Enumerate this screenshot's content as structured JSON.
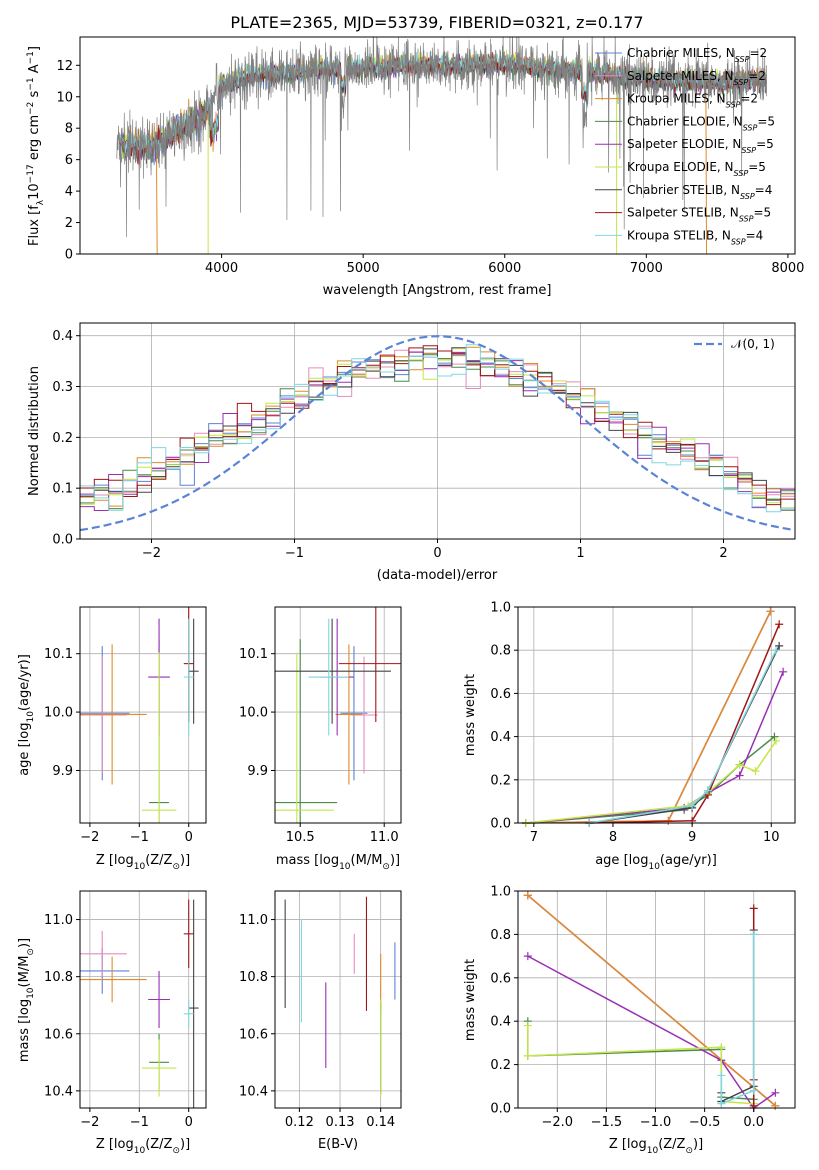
{
  "colors": {
    "chabrier_miles": "#5b84d6",
    "salpeter_miles": "#e58bbe",
    "kroupa_miles": "#e08a2a",
    "chabrier_elodie": "#4a8a4a",
    "salpeter_elodie": "#9a2fb4",
    "kroupa_elodie": "#c4e64a",
    "chabrier_stelib": "#444444",
    "salpeter_stelib": "#a01616",
    "kroupa_stelib": "#7fd6e0",
    "data_spectrum": "#808080",
    "normal_curve": "#5b84d6"
  },
  "chart_data": [
    {
      "id": "spectrum",
      "type": "line",
      "title": "PLATE=2365, MJD=53739, FIBERID=0321, z=0.177",
      "xlabel": "wavelength [Angstrom, rest frame]",
      "ylabel_parts": [
        "Flux [f",
        "λ",
        "10",
        "−17",
        " erg cm",
        "−2",
        " s",
        "−1",
        " A",
        "−1",
        "]"
      ],
      "xlim": [
        3000,
        8050
      ],
      "ylim": [
        0,
        13.8
      ],
      "xticks": [
        4000,
        5000,
        6000,
        7000,
        8000
      ],
      "yticks": [
        0,
        2,
        4,
        6,
        8,
        10,
        12
      ],
      "grid": false,
      "legend_position": "top-right",
      "continuum": {
        "x": [
          3250,
          3500,
          3750,
          3900,
          4000,
          4200,
          4500,
          5000,
          5500,
          6000,
          6500,
          7000,
          7500,
          7850
        ],
        "y": [
          7.0,
          6.8,
          8.3,
          9.0,
          10.8,
          11.3,
          11.6,
          11.9,
          12.0,
          12.1,
          11.7,
          11.1,
          10.9,
          11.1
        ]
      },
      "series": [
        {
          "name": "Chabrier MILES, N",
          "sub": "SSP",
          "suffix": "=2",
          "color_key": "chabrier_miles"
        },
        {
          "name": "Salpeter MILES, N",
          "sub": "SSP",
          "suffix": "=2",
          "color_key": "salpeter_miles"
        },
        {
          "name": "Kroupa MILES, N",
          "sub": "SSP",
          "suffix": "=2",
          "color_key": "kroupa_miles"
        },
        {
          "name": "Chabrier ELODIE, N",
          "sub": "SSP",
          "suffix": "=5",
          "color_key": "chabrier_elodie"
        },
        {
          "name": "Salpeter ELODIE, N",
          "sub": "SSP",
          "suffix": "=5",
          "color_key": "salpeter_elodie"
        },
        {
          "name": "Kroupa ELODIE, N",
          "sub": "SSP",
          "suffix": "=5",
          "color_key": "kroupa_elodie"
        },
        {
          "name": "Chabrier STELIB, N",
          "sub": "SSP",
          "suffix": "=4",
          "color_key": "chabrier_stelib"
        },
        {
          "name": "Salpeter STELIB, N",
          "sub": "SSP",
          "suffix": "=5",
          "color_key": "salpeter_stelib"
        },
        {
          "name": "Kroupa STELIB, N",
          "sub": "SSP",
          "suffix": "=4",
          "color_key": "kroupa_stelib"
        }
      ]
    },
    {
      "id": "residuals",
      "type": "step-histogram",
      "xlabel": "(data-model)/error",
      "ylabel": "Normed distribution",
      "xlim": [
        -2.5,
        2.5
      ],
      "ylim": [
        0,
        0.425
      ],
      "xticks": [
        -2,
        -1,
        0,
        1,
        2
      ],
      "yticks": [
        0.0,
        0.1,
        0.2,
        0.3,
        0.4
      ],
      "grid": true,
      "legend_position": "top-right",
      "legend_label": "𝒩(0, 1)",
      "bin_width": 0.1,
      "normal_curve": {
        "mean": 0,
        "sigma": 1
      }
    },
    {
      "id": "age_vs_Z",
      "type": "errorbar",
      "xlabel_parts": [
        "Z [log",
        "10",
        "(Z/Z",
        "⊙",
        ")]"
      ],
      "ylabel_parts": [
        "age  [log",
        "10",
        "(age/yr)]"
      ],
      "xlim": [
        -2.2,
        0.35
      ],
      "ylim": [
        9.81,
        10.18
      ],
      "xticks": [
        -2,
        -1,
        0
      ],
      "yticks": [
        9.9,
        10.0,
        10.1
      ],
      "grid": true,
      "points": [
        {
          "color_key": "chabrier_miles",
          "x": -1.75,
          "xerr": 0.55,
          "y": 9.998,
          "yerr": 0.115
        },
        {
          "color_key": "salpeter_miles",
          "x": -1.75,
          "xerr": 0.5,
          "y": 9.995,
          "yerr": 0.1
        },
        {
          "color_key": "kroupa_miles",
          "x": -1.55,
          "xerr": 0.7,
          "y": 9.996,
          "yerr": 0.12
        },
        {
          "color_key": "chabrier_elodie",
          "x": -0.6,
          "xerr": 0.2,
          "y": 9.845,
          "yerr": 0.28
        },
        {
          "color_key": "salpeter_elodie",
          "x": -0.6,
          "xerr": 0.22,
          "y": 10.06,
          "yerr": 0.1
        },
        {
          "color_key": "kroupa_elodie",
          "x": -0.6,
          "xerr": 0.35,
          "y": 9.832,
          "yerr": 0.27
        },
        {
          "color_key": "chabrier_stelib",
          "x": 0.1,
          "xerr": 0.1,
          "y": 10.07,
          "yerr": 0.09
        },
        {
          "color_key": "salpeter_stelib",
          "x": 0.0,
          "xerr": 0.1,
          "y": 10.083,
          "yerr": 0.1
        },
        {
          "color_key": "kroupa_stelib",
          "x": 0.0,
          "xerr": 0.1,
          "y": 10.06,
          "yerr": 0.1
        }
      ]
    },
    {
      "id": "age_vs_mass",
      "type": "errorbar",
      "xlabel_parts": [
        "mass [log",
        "10",
        "(M/M",
        "⊙",
        ")]"
      ],
      "ylabel_parts": [],
      "xlim": [
        10.35,
        11.1
      ],
      "ylim": [
        9.81,
        10.18
      ],
      "xticks": [
        10.5,
        11.0
      ],
      "yticks": [
        9.9,
        10.0,
        10.1
      ],
      "grid": true,
      "points": [
        {
          "color_key": "chabrier_miles",
          "x": 10.82,
          "xerr": 0.08,
          "y": 9.998,
          "yerr": 0.115
        },
        {
          "color_key": "salpeter_miles",
          "x": 10.88,
          "xerr": 0.08,
          "y": 9.995,
          "yerr": 0.1
        },
        {
          "color_key": "kroupa_miles",
          "x": 10.79,
          "xerr": 0.08,
          "y": 9.996,
          "yerr": 0.12
        },
        {
          "color_key": "chabrier_elodie",
          "x": 10.5,
          "xerr": 0.22,
          "y": 9.845,
          "yerr": 0.28
        },
        {
          "color_key": "salpeter_elodie",
          "x": 10.72,
          "xerr": 0.1,
          "y": 10.06,
          "yerr": 0.1
        },
        {
          "color_key": "kroupa_elodie",
          "x": 10.48,
          "xerr": 0.22,
          "y": 9.832,
          "yerr": 0.27
        },
        {
          "color_key": "chabrier_stelib",
          "x": 10.69,
          "xerr": 0.35,
          "y": 10.07,
          "yerr": 0.09
        },
        {
          "color_key": "salpeter_stelib",
          "x": 10.95,
          "xerr": 0.22,
          "y": 10.083,
          "yerr": 0.1
        },
        {
          "color_key": "kroupa_stelib",
          "x": 10.67,
          "xerr": 0.12,
          "y": 10.06,
          "yerr": 0.1
        }
      ]
    },
    {
      "id": "mass_weight_vs_age",
      "type": "line",
      "xlabel_parts": [
        "age  [log",
        "10",
        "(age/yr)]"
      ],
      "ylabel": "mass weight",
      "xlim": [
        6.8,
        10.3
      ],
      "ylim": [
        0,
        1.0
      ],
      "xticks": [
        7,
        8,
        9,
        10
      ],
      "yticks": [
        0.0,
        0.2,
        0.4,
        0.6,
        0.8,
        1.0
      ],
      "grid": true,
      "series": [
        {
          "color_key": "chabrier_miles",
          "x": [
            6.9,
            8.7,
            9.99
          ],
          "y": [
            0.0,
            0.01,
            0.98
          ]
        },
        {
          "color_key": "salpeter_miles",
          "x": [
            6.9,
            8.7,
            9.99
          ],
          "y": [
            0.0,
            0.01,
            0.98
          ]
        },
        {
          "color_key": "kroupa_miles",
          "x": [
            6.9,
            8.7,
            9.99
          ],
          "y": [
            0.0,
            0.01,
            0.98
          ]
        },
        {
          "color_key": "chabrier_elodie",
          "x": [
            6.9,
            8.9,
            9.2,
            9.6,
            10.04
          ],
          "y": [
            0.0,
            0.06,
            0.13,
            0.27,
            0.4
          ]
        },
        {
          "color_key": "salpeter_elodie",
          "x": [
            6.9,
            8.9,
            9.2,
            9.6,
            10.15
          ],
          "y": [
            0.0,
            0.07,
            0.14,
            0.22,
            0.7
          ]
        },
        {
          "color_key": "kroupa_elodie",
          "x": [
            6.9,
            8.95,
            9.2,
            9.6,
            9.8,
            10.06
          ],
          "y": [
            0.0,
            0.08,
            0.14,
            0.27,
            0.24,
            0.38
          ]
        },
        {
          "color_key": "chabrier_stelib",
          "x": [
            7.7,
            9.0,
            9.2,
            10.1
          ],
          "y": [
            0.0,
            0.07,
            0.15,
            0.82
          ]
        },
        {
          "color_key": "salpeter_stelib",
          "x": [
            7.7,
            9.0,
            9.2,
            10.1
          ],
          "y": [
            0.0,
            0.01,
            0.13,
            0.92
          ]
        },
        {
          "color_key": "kroupa_stelib",
          "x": [
            7.7,
            9.0,
            9.2,
            10.06
          ],
          "y": [
            0.0,
            0.08,
            0.15,
            0.8
          ]
        }
      ]
    },
    {
      "id": "mass_vs_Z",
      "type": "errorbar",
      "xlabel_parts": [
        "Z [log",
        "10",
        "(Z/Z",
        "⊙",
        ")]"
      ],
      "ylabel_parts": [
        "mass [log",
        "10",
        "(M/M",
        "⊙",
        ")]"
      ],
      "xlim": [
        -2.2,
        0.35
      ],
      "ylim": [
        10.34,
        11.1
      ],
      "xticks": [
        -2,
        -1,
        0
      ],
      "yticks": [
        10.4,
        10.6,
        10.8,
        11.0
      ],
      "grid": true,
      "points": [
        {
          "color_key": "chabrier_miles",
          "x": -1.75,
          "xerr": 0.55,
          "y": 10.82,
          "yerr": 0.08
        },
        {
          "color_key": "salpeter_miles",
          "x": -1.75,
          "xerr": 0.5,
          "y": 10.88,
          "yerr": 0.08
        },
        {
          "color_key": "kroupa_miles",
          "x": -1.55,
          "xerr": 0.7,
          "y": 10.79,
          "yerr": 0.08
        },
        {
          "color_key": "chabrier_elodie",
          "x": -0.6,
          "xerr": 0.2,
          "y": 10.5,
          "yerr": 0.1
        },
        {
          "color_key": "salpeter_elodie",
          "x": -0.6,
          "xerr": 0.22,
          "y": 10.72,
          "yerr": 0.1
        },
        {
          "color_key": "kroupa_elodie",
          "x": -0.6,
          "xerr": 0.35,
          "y": 10.48,
          "yerr": 0.1
        },
        {
          "color_key": "chabrier_stelib",
          "x": 0.1,
          "xerr": 0.1,
          "y": 10.69,
          "yerr": 0.38
        },
        {
          "color_key": "salpeter_stelib",
          "x": 0.0,
          "xerr": 0.1,
          "y": 10.95,
          "yerr": 0.12
        },
        {
          "color_key": "kroupa_stelib",
          "x": 0.0,
          "xerr": 0.1,
          "y": 10.67,
          "yerr": 0.05
        }
      ]
    },
    {
      "id": "mass_vs_ebv",
      "type": "errorbar",
      "xlabel": "E(B-V)",
      "ylabel_parts": [],
      "xlim": [
        0.114,
        0.145
      ],
      "ylim": [
        10.34,
        11.1
      ],
      "xticks": [
        0.12,
        0.13,
        0.14
      ],
      "yticks": [
        10.4,
        10.6,
        10.8,
        11.0
      ],
      "grid": true,
      "points": [
        {
          "color_key": "chabrier_miles",
          "x": 0.1435,
          "xerr": 0,
          "y": 10.82,
          "yerr": 0.1
        },
        {
          "color_key": "salpeter_miles",
          "x": 0.1335,
          "xerr": 0,
          "y": 10.88,
          "yerr": 0.07
        },
        {
          "color_key": "kroupa_miles",
          "x": 0.14,
          "xerr": 0,
          "y": 10.78,
          "yerr": 0.1
        },
        {
          "color_key": "chabrier_elodie",
          "x": 0.14,
          "xerr": 0,
          "y": 10.55,
          "yerr": 0.16
        },
        {
          "color_key": "salpeter_elodie",
          "x": 0.1265,
          "xerr": 0,
          "y": 10.63,
          "yerr": 0.15
        },
        {
          "color_key": "kroupa_elodie",
          "x": 0.14,
          "xerr": 0,
          "y": 10.55,
          "yerr": 0.17
        },
        {
          "color_key": "chabrier_stelib",
          "x": 0.1165,
          "xerr": 0,
          "y": 10.88,
          "yerr": 0.19
        },
        {
          "color_key": "salpeter_stelib",
          "x": 0.1365,
          "xerr": 0,
          "y": 10.88,
          "yerr": 0.2
        },
        {
          "color_key": "kroupa_stelib",
          "x": 0.1205,
          "xerr": 0,
          "y": 10.82,
          "yerr": 0.18
        }
      ]
    },
    {
      "id": "mass_weight_vs_Z",
      "type": "line",
      "xlabel_parts": [
        "Z [log",
        "10",
        "(Z/Z",
        "⊙",
        ")]"
      ],
      "ylabel": "mass weight",
      "xlim": [
        -2.4,
        0.42
      ],
      "ylim": [
        0,
        1.0
      ],
      "xticks": [
        -2.0,
        -1.5,
        -1.0,
        -0.5,
        0.0
      ],
      "yticks": [
        0.0,
        0.2,
        0.4,
        0.6,
        0.8,
        1.0
      ],
      "grid": true,
      "series": [
        {
          "color_key": "chabrier_miles",
          "x": [
            -2.3,
            0.22
          ],
          "y": [
            0.98,
            0.01
          ]
        },
        {
          "color_key": "salpeter_miles",
          "x": [
            -2.3,
            0.22
          ],
          "y": [
            0.98,
            0.01
          ]
        },
        {
          "color_key": "kroupa_miles",
          "x": [
            -2.3,
            0.22
          ],
          "y": [
            0.98,
            0.01
          ]
        },
        {
          "color_key": "chabrier_elodie",
          "x": [
            -2.3,
            -2.3,
            -0.33,
            -0.33,
            0.0
          ],
          "y": [
            0.4,
            0.24,
            0.27,
            0.05,
            0.04
          ]
        },
        {
          "color_key": "salpeter_elodie",
          "x": [
            -2.3,
            -0.33,
            0.0,
            0.22
          ],
          "y": [
            0.7,
            0.22,
            0.0,
            0.07
          ]
        },
        {
          "color_key": "kroupa_elodie",
          "x": [
            -2.3,
            -2.3,
            -0.33,
            -0.33,
            0.0
          ],
          "y": [
            0.38,
            0.24,
            0.28,
            0.03,
            0.02
          ]
        },
        {
          "color_key": "chabrier_stelib",
          "x": [
            -0.33,
            -0.33,
            0.0,
            0.0
          ],
          "y": [
            0.07,
            0.03,
            0.1,
            0.82
          ]
        },
        {
          "color_key": "salpeter_stelib",
          "x": [
            0.0,
            0.0,
            0.0
          ],
          "y": [
            0.01,
            0.13,
            0.92
          ]
        },
        {
          "color_key": "kroupa_stelib",
          "x": [
            -0.33,
            -0.33,
            0.0,
            0.0
          ],
          "y": [
            0.15,
            0.02,
            0.08,
            0.8
          ]
        }
      ]
    }
  ]
}
